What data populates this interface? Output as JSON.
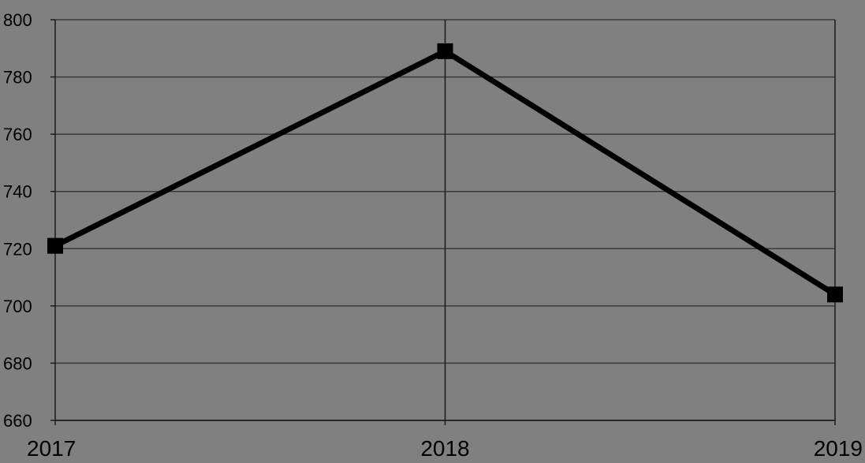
{
  "chart_data": {
    "type": "line",
    "x": [
      "2017",
      "2018",
      "2019"
    ],
    "series": [
      {
        "values": [
          721,
          789,
          704
        ]
      }
    ],
    "ylim": [
      660,
      800
    ],
    "yticks": [
      660,
      680,
      700,
      720,
      740,
      760,
      780,
      800
    ],
    "grid": true,
    "legend": "none",
    "markers": "square",
    "colors": {
      "background": "#808080",
      "line": "#000000",
      "grid": "#3a3a3a",
      "axis": "#1a1a1a"
    }
  }
}
